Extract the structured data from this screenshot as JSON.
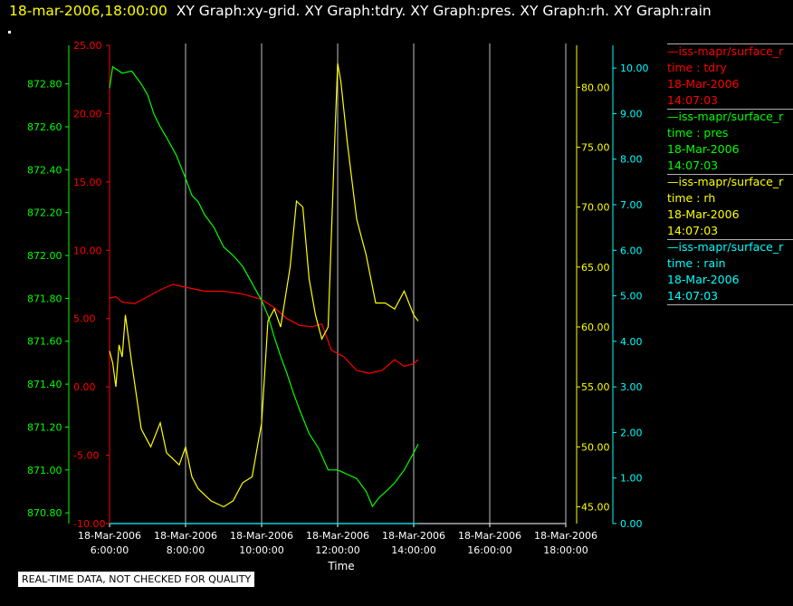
{
  "header": {
    "date": "18-mar-2006,18:00:00",
    "graphs": "XY Graph:xy-grid.  XY Graph:tdry.  XY Graph:pres.  XY Graph:rh.  XY Graph:rain"
  },
  "quality_note": "REAL-TIME DATA, NOT CHECKED FOR QUALITY",
  "colors": {
    "tdry": "#ff0000",
    "pres": "#00ff00",
    "rh": "#ffff00",
    "rain": "#00ffff",
    "grid": "#c0c0c0"
  },
  "legend": [
    {
      "line1": "—iss-mapr/surface_r",
      "line2": "time : tdry",
      "line3": "18-Mar-2006",
      "line4": "14:07:03",
      "color": "#ff0000"
    },
    {
      "line1": "—iss-mapr/surface_r",
      "line2": "time : pres",
      "line3": "18-Mar-2006",
      "line4": "14:07:03",
      "color": "#00ff00"
    },
    {
      "line1": "—iss-mapr/surface_r",
      "line2": "time : rh",
      "line3": "18-Mar-2006",
      "line4": "14:07:03",
      "color": "#ffff00"
    },
    {
      "line1": "—iss-mapr/surface_r",
      "line2": "time : rain",
      "line3": "18-Mar-2006",
      "line4": "14:07:03",
      "color": "#00ffff"
    }
  ],
  "chart_data": {
    "type": "line",
    "xlabel": "Time",
    "xlim": [
      "06:00",
      "18:00"
    ],
    "x_ticks": [
      {
        "date": "18-Mar-2006",
        "time": "6:00:00"
      },
      {
        "date": "18-Mar-2006",
        "time": "8:00:00"
      },
      {
        "date": "18-Mar-2006",
        "time": "10:00:00"
      },
      {
        "date": "18-Mar-2006",
        "time": "12:00:00"
      },
      {
        "date": "18-Mar-2006",
        "time": "14:00:00"
      },
      {
        "date": "18-Mar-2006",
        "time": "16:00:00"
      },
      {
        "date": "18-Mar-2006",
        "time": "18:00:00"
      }
    ],
    "grid": true,
    "axes": {
      "tdry": {
        "color": "#ff0000",
        "side": "left",
        "ylim": [
          -10,
          25
        ],
        "ticks": [
          "25.00",
          "20.00",
          "15.00",
          "10.00",
          "5.00",
          "0.00",
          "-5.00",
          "-10.00"
        ]
      },
      "pres": {
        "color": "#00ff00",
        "side": "left",
        "ylim": [
          870.75,
          872.98
        ],
        "ticks": [
          "872.80",
          "872.60",
          "872.40",
          "872.20",
          "872.00",
          "871.80",
          "871.60",
          "871.40",
          "871.20",
          "871.00",
          "870.80"
        ]
      },
      "rh": {
        "color": "#ffff00",
        "side": "right",
        "ylim": [
          43.6,
          83.5
        ],
        "ticks": [
          "80.00",
          "75.00",
          "70.00",
          "65.00",
          "60.00",
          "55.00",
          "50.00",
          "45.00"
        ]
      },
      "rain": {
        "color": "#00ffff",
        "side": "right",
        "ylim": [
          0,
          10.5
        ],
        "ticks": [
          "10.00",
          "9.00",
          "8.00",
          "7.00",
          "6.00",
          "5.00",
          "4.00",
          "3.00",
          "2.00",
          "1.00",
          "0.00"
        ]
      }
    },
    "series": [
      {
        "name": "time : tdry",
        "axis": "tdry",
        "color": "#ff0000",
        "points": [
          [
            "06:00",
            6.5
          ],
          [
            "06:10",
            6.6
          ],
          [
            "06:20",
            6.2
          ],
          [
            "06:40",
            6.1
          ],
          [
            "07:00",
            6.6
          ],
          [
            "07:20",
            7.1
          ],
          [
            "07:40",
            7.5
          ],
          [
            "08:00",
            7.3
          ],
          [
            "08:30",
            7.0
          ],
          [
            "09:00",
            7.0
          ],
          [
            "09:30",
            6.8
          ],
          [
            "10:00",
            6.4
          ],
          [
            "10:20",
            5.8
          ],
          [
            "10:40",
            5.0
          ],
          [
            "11:00",
            4.5
          ],
          [
            "11:20",
            4.4
          ],
          [
            "11:35",
            4.6
          ],
          [
            "11:50",
            2.7
          ],
          [
            "12:10",
            2.2
          ],
          [
            "12:30",
            1.2
          ],
          [
            "12:50",
            1.0
          ],
          [
            "13:10",
            1.2
          ],
          [
            "13:20",
            1.6
          ],
          [
            "13:30",
            2.0
          ],
          [
            "13:45",
            1.5
          ],
          [
            "14:00",
            1.7
          ],
          [
            "14:07",
            2.0
          ]
        ]
      },
      {
        "name": "time : pres",
        "axis": "pres",
        "color": "#00ff00",
        "points": [
          [
            "06:00",
            872.78
          ],
          [
            "06:05",
            872.88
          ],
          [
            "06:20",
            872.85
          ],
          [
            "06:35",
            872.86
          ],
          [
            "06:50",
            872.8
          ],
          [
            "07:00",
            872.75
          ],
          [
            "07:10",
            872.66
          ],
          [
            "07:20",
            872.6
          ],
          [
            "07:30",
            872.55
          ],
          [
            "07:45",
            872.47
          ],
          [
            "08:00",
            872.36
          ],
          [
            "08:10",
            872.28
          ],
          [
            "08:20",
            872.25
          ],
          [
            "08:30",
            872.19
          ],
          [
            "08:45",
            872.13
          ],
          [
            "09:00",
            872.04
          ],
          [
            "09:15",
            872.0
          ],
          [
            "09:30",
            871.95
          ],
          [
            "09:45",
            871.87
          ],
          [
            "10:00",
            871.79
          ],
          [
            "10:10",
            871.72
          ],
          [
            "10:20",
            871.62
          ],
          [
            "10:30",
            871.53
          ],
          [
            "10:40",
            871.45
          ],
          [
            "10:50",
            871.36
          ],
          [
            "11:00",
            871.28
          ],
          [
            "11:15",
            871.17
          ],
          [
            "11:30",
            871.1
          ],
          [
            "11:45",
            871.0
          ],
          [
            "12:00",
            871.0
          ],
          [
            "12:15",
            870.98
          ],
          [
            "12:30",
            870.96
          ],
          [
            "12:45",
            870.9
          ],
          [
            "12:55",
            870.83
          ],
          [
            "13:05",
            870.87
          ],
          [
            "13:20",
            870.91
          ],
          [
            "13:30",
            870.94
          ],
          [
            "13:45",
            871.0
          ],
          [
            "14:00",
            871.08
          ],
          [
            "14:07",
            871.12
          ]
        ]
      },
      {
        "name": "time : rh",
        "axis": "rh",
        "color": "#ffff00",
        "points": [
          [
            "06:00",
            58.0
          ],
          [
            "06:05",
            57.0
          ],
          [
            "06:10",
            55.0
          ],
          [
            "06:15",
            58.5
          ],
          [
            "06:20",
            57.5
          ],
          [
            "06:25",
            61.0
          ],
          [
            "06:35",
            57.0
          ],
          [
            "06:50",
            51.5
          ],
          [
            "07:05",
            50.0
          ],
          [
            "07:20",
            52.0
          ],
          [
            "07:30",
            49.5
          ],
          [
            "07:50",
            48.5
          ],
          [
            "08:00",
            50.0
          ],
          [
            "08:10",
            47.5
          ],
          [
            "08:20",
            46.5
          ],
          [
            "08:40",
            45.5
          ],
          [
            "09:00",
            45.0
          ],
          [
            "09:15",
            45.5
          ],
          [
            "09:30",
            47.0
          ],
          [
            "09:45",
            47.5
          ],
          [
            "10:00",
            52.0
          ],
          [
            "10:10",
            60.5
          ],
          [
            "10:20",
            61.5
          ],
          [
            "10:30",
            60.0
          ],
          [
            "10:45",
            65.0
          ],
          [
            "10:55",
            70.5
          ],
          [
            "11:05",
            70.0
          ],
          [
            "11:15",
            64.0
          ],
          [
            "11:25",
            61.0
          ],
          [
            "11:35",
            59.0
          ],
          [
            "11:45",
            60.0
          ],
          [
            "11:55",
            75.0
          ],
          [
            "12:00",
            82.0
          ],
          [
            "12:05",
            80.5
          ],
          [
            "12:15",
            75.5
          ],
          [
            "12:30",
            69.0
          ],
          [
            "12:45",
            66.0
          ],
          [
            "13:00",
            62.0
          ],
          [
            "13:15",
            62.0
          ],
          [
            "13:30",
            61.5
          ],
          [
            "13:45",
            63.0
          ],
          [
            "14:00",
            61.0
          ],
          [
            "14:07",
            60.5
          ]
        ]
      },
      {
        "name": "time : rain",
        "axis": "rain",
        "color": "#00ffff",
        "points": [
          [
            "06:00",
            0.0
          ],
          [
            "14:07",
            0.0
          ]
        ]
      }
    ]
  }
}
